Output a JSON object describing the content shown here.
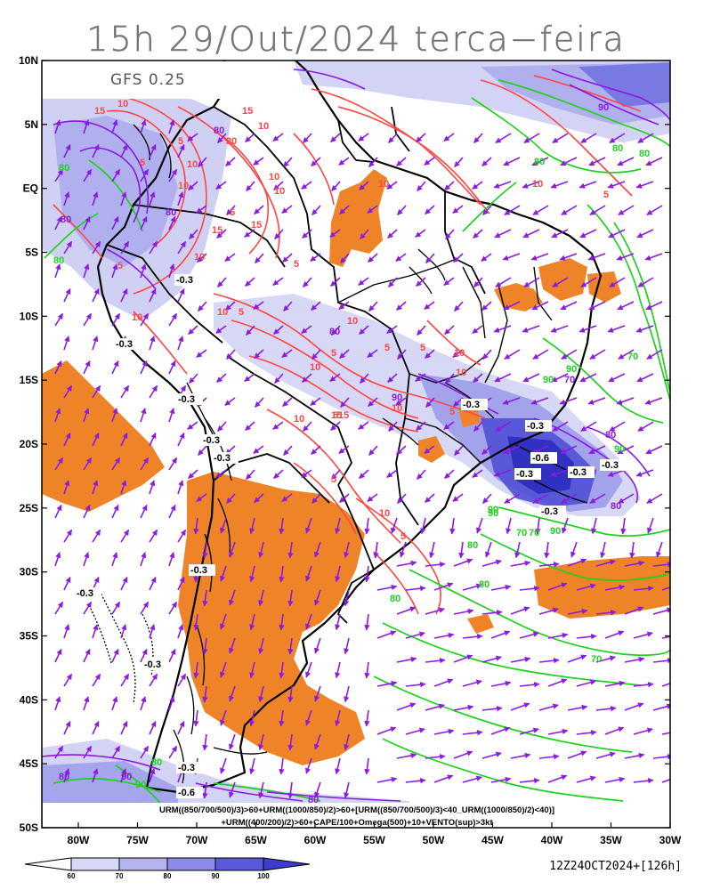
{
  "title": "15h 29/Out/2024 terca−feira",
  "model": "GFS 0.25",
  "formula_line1": "URM((850/700/500)/3)>60+URM((1000/850)/2)>60+[URM((850/700/500)/3)<40_URM((1000/850)/2)<40)]",
  "formula_line2": "+URM((400/200)/2)>60+CAPE/100+Omega(500)+10+VENTO(sup)>3kt",
  "timestamp": "12Z24OCT2024+[126h]",
  "lat_labels": [
    "10N",
    "5N",
    "EQ",
    "5S",
    "10S",
    "15S",
    "20S",
    "25S",
    "30S",
    "35S",
    "40S",
    "45S",
    "50S"
  ],
  "lon_labels": [
    "80W",
    "75W",
    "70W",
    "65W",
    "60W",
    "55W",
    "50W",
    "45W",
    "40W",
    "35W",
    "30W"
  ],
  "colorbar": {
    "labels": [
      "60",
      "70",
      "80",
      "90",
      "100"
    ],
    "colors": [
      "#ffffff",
      "#d8d8f6",
      "#b4b4ee",
      "#8c8ce6",
      "#5a5ad8",
      "#3c3cd0"
    ]
  },
  "contour_labels": {
    "red": [
      "15",
      "10",
      "15",
      "20",
      "10",
      "5",
      "10",
      "10",
      "5",
      "15",
      "10",
      "5",
      "10",
      "5",
      "10",
      "5",
      "10",
      "5",
      "10",
      "15",
      "10",
      "5",
      "10",
      "5",
      "5",
      "10",
      "5",
      "15",
      "10",
      "5",
      "10",
      "10",
      "5",
      "15",
      "10",
      "5",
      "10",
      "5",
      "10"
    ],
    "green": [
      "80",
      "90",
      "80",
      "80",
      "90",
      "70",
      "90",
      "80",
      "80",
      "70",
      "80",
      "90",
      "80",
      "90",
      "70",
      "90",
      "80",
      "70",
      "80",
      "90"
    ],
    "purple": [
      "90",
      "80",
      "80",
      "90",
      "80",
      "80",
      "90",
      "80",
      "70",
      "80",
      "80",
      "80"
    ],
    "negative": [
      "-0.3",
      "-0.3",
      "-0.3",
      "-0.3",
      "-0.3",
      "-0.3",
      "-0.3",
      "-0.3",
      "-0.3",
      "-0.6",
      "-0.3",
      "-0.3",
      "-0.3",
      "-0.3",
      "-0.3",
      "-0.3",
      "-0.6"
    ]
  }
}
